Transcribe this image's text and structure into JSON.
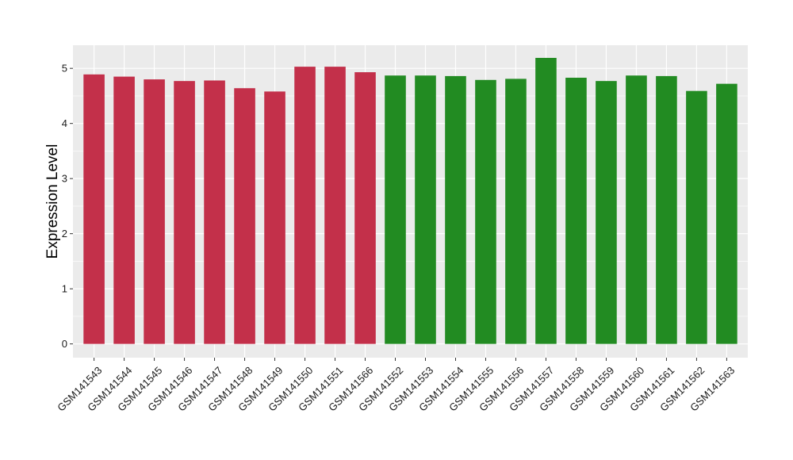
{
  "chart_data": {
    "type": "bar",
    "title": "",
    "xlabel": "",
    "ylabel": "Expression Level",
    "ylim": [
      -0.25,
      5.42
    ],
    "yticks": [
      0,
      1,
      2,
      3,
      4,
      5
    ],
    "grid": true,
    "legend": "none",
    "panel_background": "#EBEBEB",
    "grid_color": "#FFFFFF",
    "categories": [
      "GSM141543",
      "GSM141544",
      "GSM141545",
      "GSM141546",
      "GSM141547",
      "GSM141548",
      "GSM141549",
      "GSM141550",
      "GSM141551",
      "GSM141566",
      "GSM141552",
      "GSM141553",
      "GSM141554",
      "GSM141555",
      "GSM141556",
      "GSM141557",
      "GSM141558",
      "GSM141559",
      "GSM141560",
      "GSM141561",
      "GSM141562",
      "GSM141563"
    ],
    "values": [
      4.89,
      4.85,
      4.8,
      4.77,
      4.78,
      4.64,
      4.58,
      5.03,
      5.03,
      4.93,
      4.87,
      4.87,
      4.86,
      4.79,
      4.81,
      5.19,
      4.83,
      4.77,
      4.87,
      4.86,
      4.59,
      4.72
    ],
    "colors": [
      "#C3304A",
      "#C3304A",
      "#C3304A",
      "#C3304A",
      "#C3304A",
      "#C3304A",
      "#C3304A",
      "#C3304A",
      "#C3304A",
      "#C3304A",
      "#228B22",
      "#228B22",
      "#228B22",
      "#228B22",
      "#228B22",
      "#228B22",
      "#228B22",
      "#228B22",
      "#228B22",
      "#228B22",
      "#228B22",
      "#228B22"
    ]
  }
}
